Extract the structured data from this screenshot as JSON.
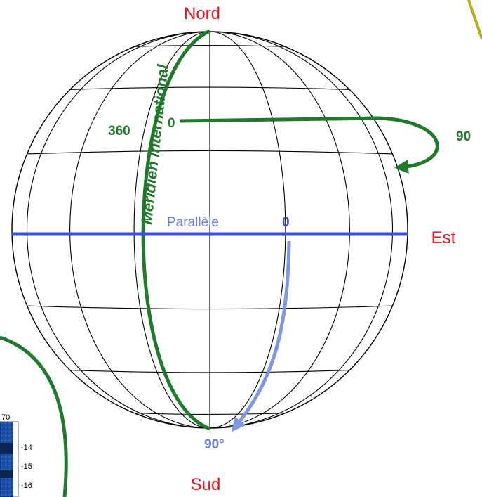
{
  "labels": {
    "north": "Nord",
    "south": "Sud",
    "east": "Est",
    "meridian": "Méridien international",
    "parallel": "Parallèle",
    "longitude_zero": "0",
    "longitude_360": "360",
    "longitude_90": "90",
    "latitude_zero": "0",
    "latitude_90": "90°"
  },
  "legend_fragment": {
    "top_value": "70",
    "values": [
      "-14",
      "-15",
      "-16"
    ]
  },
  "colors": {
    "cardinal_text": "#e8161c",
    "meridian_green": "#1f7a2b",
    "equator_blue": "#3b4fd8",
    "latitude_arrow_blue": "#7f98e0",
    "grid_black": "#000000",
    "yellow_curve": "#b5ab1e",
    "legend_blue": "#1c4fa8"
  }
}
